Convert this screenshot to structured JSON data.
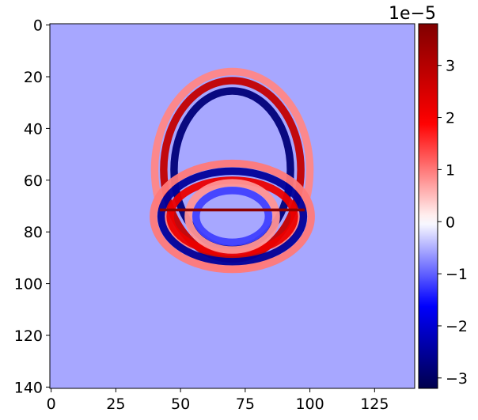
{
  "chart_data": {
    "type": "heatmap",
    "title": "",
    "xlabel": "",
    "ylabel": "",
    "grid": false,
    "colormap": "seismic",
    "image_extent": {
      "x": [
        -0.5,
        140.5
      ],
      "y": [
        -0.5,
        140.5
      ]
    },
    "y_axis_inverted": true,
    "x_ticks": [
      0,
      25,
      50,
      75,
      100,
      125
    ],
    "x_tick_labels": [
      "0",
      "25",
      "50",
      "75",
      "100",
      "125"
    ],
    "y_ticks": [
      0,
      20,
      40,
      60,
      80,
      100,
      120,
      140
    ],
    "y_tick_labels": [
      "0",
      "20",
      "40",
      "60",
      "80",
      "100",
      "120",
      "140"
    ],
    "colorbar": {
      "range": [
        -3.2,
        3.8
      ],
      "ticks": [
        -3,
        -2,
        -1,
        0,
        1,
        2,
        3
      ],
      "tick_labels": [
        "−3",
        "−2",
        "−1",
        "0",
        "1",
        "2",
        "3"
      ],
      "offset_text": "1e−5"
    },
    "background_value": -0.55,
    "features": [
      {
        "name": "outer-wavefront",
        "center": [
          70,
          56
        ],
        "radius_x": 26.5,
        "radius_y": 34.5,
        "band": [
          {
            "offset": -4,
            "value": -2.8
          },
          {
            "offset": 0,
            "value": 2.8
          },
          {
            "offset": 3.5,
            "value": 0.9
          }
        ]
      },
      {
        "name": "reflected-wavefront",
        "center": [
          70,
          74
        ],
        "radius_x": 26,
        "radius_y": 16,
        "band": [
          {
            "offset": -2,
            "value": 2.2
          },
          {
            "offset": 1.5,
            "value": -2.5
          },
          {
            "offset": 4.5,
            "value": 1.0
          }
        ]
      },
      {
        "name": "inner-arc",
        "center": [
          70,
          74
        ],
        "radius_x": 15,
        "radius_y": 11,
        "band": [
          {
            "offset": -1,
            "value": -1.2
          },
          {
            "offset": 2,
            "value": 0.8
          }
        ]
      },
      {
        "name": "interface-line",
        "y": 71.5,
        "x_range": [
          42,
          98
        ],
        "value": 3.6
      }
    ]
  },
  "colors": {
    "colormap_stops": [
      "#00004c",
      "#0000ff",
      "#ffffff",
      "#ff0000",
      "#800000"
    ]
  }
}
